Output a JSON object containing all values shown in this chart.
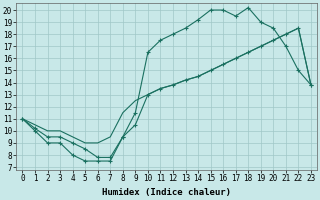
{
  "xlabel": "Humidex (Indice chaleur)",
  "bg_color": "#c8e8e8",
  "grid_color": "#a0c8c8",
  "line_color": "#1a7060",
  "xlim": [
    -0.5,
    23.5
  ],
  "ylim": [
    6.8,
    20.6
  ],
  "xticks": [
    0,
    1,
    2,
    3,
    4,
    5,
    6,
    7,
    8,
    9,
    10,
    11,
    12,
    13,
    14,
    15,
    16,
    17,
    18,
    19,
    20,
    21,
    22,
    23
  ],
  "yticks": [
    7,
    8,
    9,
    10,
    11,
    12,
    13,
    14,
    15,
    16,
    17,
    18,
    19,
    20
  ],
  "line1_x": [
    0,
    1,
    2,
    3,
    4,
    5,
    6,
    7,
    8,
    9,
    10,
    11,
    12,
    13,
    14,
    15,
    16,
    17,
    18,
    19,
    20,
    21,
    22,
    23
  ],
  "line1_y": [
    11,
    10,
    9,
    9,
    8,
    7.5,
    7.5,
    7.5,
    9.5,
    11.5,
    16.5,
    17.5,
    18,
    18.5,
    19.2,
    20,
    20,
    19.5,
    20.2,
    19,
    18.5,
    17,
    15,
    13.8
  ],
  "line2_x": [
    0,
    1,
    2,
    3,
    4,
    5,
    6,
    7,
    8,
    9,
    10,
    11,
    12,
    13,
    14,
    15,
    16,
    17,
    18,
    19,
    20,
    21,
    22,
    23
  ],
  "line2_y": [
    11,
    10.2,
    9.5,
    9.5,
    9,
    8.5,
    7.8,
    7.8,
    9.5,
    10.5,
    13.0,
    13.5,
    13.8,
    14.2,
    14.5,
    15.0,
    15.5,
    16.0,
    16.5,
    17.0,
    17.5,
    18.0,
    18.5,
    13.8
  ],
  "line3_x": [
    0,
    1,
    2,
    3,
    4,
    5,
    6,
    7,
    8,
    9,
    10,
    11,
    12,
    13,
    14,
    15,
    16,
    17,
    18,
    19,
    20,
    21,
    22,
    23
  ],
  "line3_y": [
    11,
    10.5,
    10.0,
    10.0,
    9.5,
    9.0,
    9.0,
    9.5,
    11.5,
    12.5,
    13.0,
    13.5,
    13.8,
    14.2,
    14.5,
    15.0,
    15.5,
    16.0,
    16.5,
    17.0,
    17.5,
    18.0,
    18.5,
    13.8
  ],
  "tick_fontsize": 5.5,
  "xlabel_fontsize": 6.5
}
